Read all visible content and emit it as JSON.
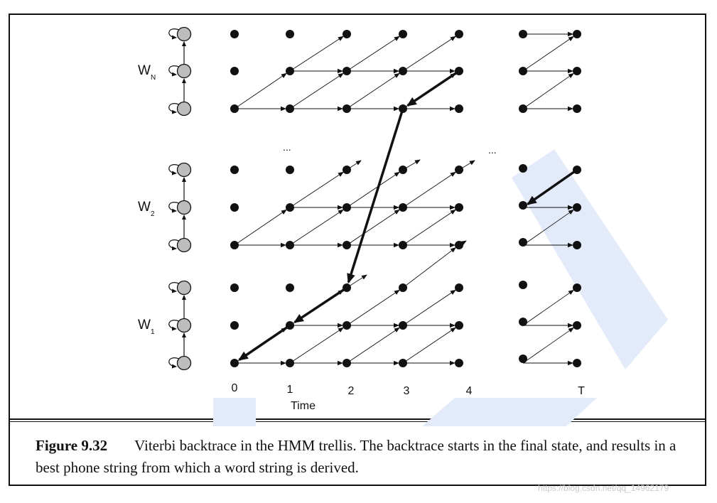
{
  "words": [
    {
      "label": "W",
      "sub": "N"
    },
    {
      "label": "W",
      "sub": "2"
    },
    {
      "label": "W",
      "sub": "1"
    }
  ],
  "ellipsis": [
    "...",
    "..."
  ],
  "time_ticks": [
    "0",
    "1",
    "2",
    "3",
    "4",
    "T"
  ],
  "time_label": "Time",
  "caption": {
    "label": "Figure 9.32",
    "text": "Viterbi backtrace in the HMM trellis. The backtrace starts in the final state, and results in a best phone string from which a word string is derived."
  },
  "watermark": "https://blog.csdn.net/qq_14962179",
  "colors": {
    "line": "#111111",
    "node": "#111111",
    "hmm_state": "#bdbdbd",
    "watermark_shape": "#e3ebfb"
  }
}
